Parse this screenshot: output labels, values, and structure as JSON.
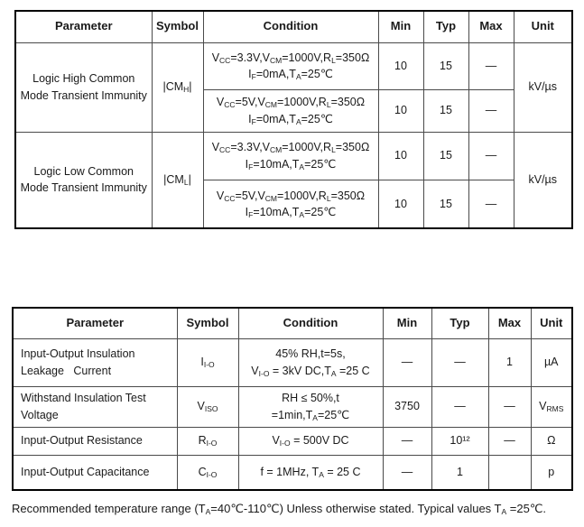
{
  "page": {
    "background": "#ffffff",
    "text_color": "#1a1a1a",
    "outer_border_color": "#000000",
    "grid_line_color": "#4a4a4a"
  },
  "table1": {
    "headers": [
      "Parameter",
      "Symbol",
      "Condition",
      "Min",
      "Typ",
      "Max",
      "Unit"
    ],
    "groups": [
      {
        "parameter": "Logic High Common Mode Transient Immunity",
        "symbol": "|CM<sub>H</sub>|",
        "unit": "kV/µs",
        "rows": [
          {
            "condition": "V<sub>CC</sub>=3.3V,V<sub>CM</sub>=1000V,R<sub>L</sub>=350Ω<br>I<sub>F</sub>=0mA,T<sub>A</sub>=25℃",
            "min": "10",
            "typ": "15",
            "max": "—"
          },
          {
            "condition": "V<sub>CC</sub>=5V,V<sub>CM</sub>=1000V,R<sub>L</sub>=350Ω<br>I<sub>F</sub>=0mA,T<sub>A</sub>=25℃",
            "min": "10",
            "typ": "15",
            "max": "—"
          }
        ]
      },
      {
        "parameter": "Logic Low Common Mode Transient Immunity",
        "symbol": "|CM<sub>L</sub>|",
        "unit": "kV/µs",
        "rows": [
          {
            "condition": "V<sub>CC</sub>=3.3V,V<sub>CM</sub>=1000V,R<sub>L</sub>=350Ω<br>I<sub>F</sub>=10mA,T<sub>A</sub>=25℃",
            "min": "10",
            "typ": "15",
            "max": "—"
          },
          {
            "condition": "V<sub>CC</sub>=5V,V<sub>CM</sub>=1000V,R<sub>L</sub>=350Ω<br>I<sub>F</sub>=10mA,T<sub>A</sub>=25℃",
            "min": "10",
            "typ": "15",
            "max": "—"
          }
        ]
      }
    ]
  },
  "table2": {
    "headers": [
      "Parameter",
      "Symbol",
      "Condition",
      "Min",
      "Typ",
      "Max",
      "Unit"
    ],
    "rows": [
      {
        "parameter": "Input-Output Insulation<br>Leakage&nbsp;&nbsp;&nbsp;Current",
        "symbol": "I<sub>I-O</sub>",
        "condition": "45% RH,t=5s,<br>V<sub>I-O</sub> = 3kV DC,T<sub>A</sub> =25 C",
        "min": "—",
        "typ": "—",
        "max": "1",
        "unit": "µA"
      },
      {
        "parameter": "Withstand Insulation Test<br>Voltage",
        "symbol": "V<sub>ISO</sub>",
        "condition": "RH ≤ 50%,t =1min,T<sub>A</sub>=25℃",
        "min": "3750",
        "typ": "—",
        "max": "—",
        "unit": "V<sub>RMS</sub>"
      },
      {
        "parameter": "Input-Output Resistance",
        "symbol": "R<sub>I-O</sub>",
        "condition": "V<sub>I-O</sub> = 500V DC",
        "min": "—",
        "typ": "10¹²",
        "max": "—",
        "unit": "Ω"
      },
      {
        "parameter": "Input-Output Capacitance",
        "symbol": "C<sub>I-O</sub>",
        "condition": "f = 1MHz, T<sub>A</sub> = 25 C",
        "min": "—",
        "typ": "1",
        "max": "",
        "unit": "p"
      }
    ]
  },
  "footnote": "Recommended temperature range (T<sub>A</sub>=40℃-110℃) Unless otherwise stated. Typical values T<sub>A</sub> =25℃."
}
